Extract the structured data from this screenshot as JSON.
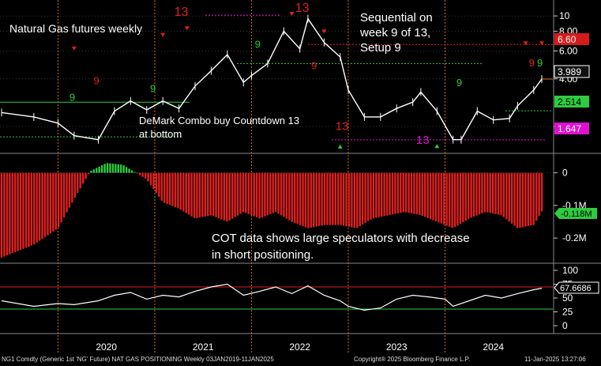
{
  "chart_data": [
    {
      "type": "line",
      "panel": "price",
      "title": "Natural Gas futures weekly",
      "ylabel": "",
      "y_scale": "log",
      "ylim": [
        1.5,
        11.5
      ],
      "yticks": [
        2,
        4,
        6,
        8,
        10
      ],
      "y_tick_labels": [
        "2.00",
        "4.00",
        "6.00",
        "8.00",
        "10"
      ],
      "grid": true,
      "x_domain": [
        "2019-06",
        "2025-01"
      ],
      "series": [
        {
          "color": "#ffffff",
          "x": [
            "2019-06",
            "2019-10",
            "2020-01",
            "2020-03",
            "2020-06",
            "2020-08",
            "2020-10",
            "2020-12",
            "2021-02",
            "2021-04",
            "2021-06",
            "2021-08",
            "2021-10",
            "2021-12",
            "2022-01",
            "2022-03",
            "2022-05",
            "2022-07",
            "2022-08",
            "2022-10",
            "2022-12",
            "2023-01",
            "2023-03",
            "2023-05",
            "2023-07",
            "2023-09",
            "2023-10",
            "2023-12",
            "2024-02",
            "2024-03",
            "2024-05",
            "2024-07",
            "2024-09",
            "2024-10",
            "2024-12",
            "2025-01"
          ],
          "values": [
            2.45,
            2.3,
            2.1,
            1.75,
            1.65,
            2.5,
            2.9,
            2.55,
            2.9,
            2.6,
            3.6,
            4.5,
            5.7,
            3.8,
            4.2,
            5.0,
            8.0,
            6.2,
            9.6,
            6.8,
            5.5,
            3.4,
            2.3,
            2.3,
            2.6,
            2.85,
            3.3,
            2.5,
            1.65,
            1.65,
            2.5,
            2.2,
            2.25,
            2.7,
            3.4,
            3.989
          ]
        }
      ],
      "value_labels": [
        {
          "text": "6.60",
          "color": "#d61b1b"
        },
        {
          "text": "3.989",
          "color": "#ffffff"
        },
        {
          "text": "2.514",
          "color": "#2ecc40"
        },
        {
          "text": "1.647",
          "color": "#e010d0"
        }
      ],
      "annotations": [
        {
          "text": "Sequential on",
          "line": 1
        },
        {
          "text": "week 9 of 13,",
          "line": 2
        },
        {
          "text": "Setup 9",
          "line": 3
        },
        {
          "text": "DeMark Combo buy Countdown 13",
          "line": 1
        },
        {
          "text": "at bottom",
          "line": 2
        }
      ],
      "demark_labels": [
        {
          "text": "13",
          "color": "#e02020"
        },
        {
          "text": "13",
          "color": "#e02020"
        },
        {
          "text": "13",
          "color": "#e02020"
        },
        {
          "text": "13",
          "color": "#e010d0"
        },
        {
          "text": "9",
          "color": "#2ecc40"
        },
        {
          "text": "9",
          "color": "#2ecc40"
        },
        {
          "text": "9",
          "color": "#e02020"
        },
        {
          "text": "9",
          "color": "#2ecc40"
        },
        {
          "text": "9",
          "color": "#e02020"
        },
        {
          "text": "9",
          "color": "#2ecc40"
        },
        {
          "text": "9",
          "color": "#e02020"
        },
        {
          "text": "9",
          "color": "#2ecc40"
        }
      ]
    },
    {
      "type": "bar",
      "panel": "cot",
      "annotation_lines": [
        "COT data shows large speculators with decrease",
        "in short positioning."
      ],
      "yticks": [
        0,
        -0.1,
        -0.2
      ],
      "y_tick_labels": [
        "0",
        "-0.1M",
        "-0.2M"
      ],
      "ylim": [
        -0.27,
        0.05
      ],
      "last_value_label": "-0.118M",
      "positive_color": "#2ecc40",
      "negative_color": "#e02020",
      "series": [
        {
          "x": [
            "2019-06",
            "2019-10",
            "2020-01",
            "2020-03",
            "2020-05",
            "2020-07",
            "2020-09",
            "2020-10",
            "2020-12",
            "2021-02",
            "2021-04",
            "2021-06",
            "2021-08",
            "2021-10",
            "2021-12",
            "2022-02",
            "2022-04",
            "2022-06",
            "2022-08",
            "2022-10",
            "2022-12",
            "2023-02",
            "2023-04",
            "2023-06",
            "2023-08",
            "2023-10",
            "2023-12",
            "2024-02",
            "2024-04",
            "2024-06",
            "2024-08",
            "2024-10",
            "2024-12",
            "2025-01"
          ],
          "values": [
            -0.26,
            -0.22,
            -0.17,
            -0.08,
            0.005,
            0.03,
            0.025,
            0.01,
            -0.02,
            -0.09,
            -0.11,
            -0.14,
            -0.13,
            -0.15,
            -0.12,
            -0.14,
            -0.12,
            -0.15,
            -0.17,
            -0.16,
            -0.16,
            -0.17,
            -0.14,
            -0.13,
            -0.12,
            -0.13,
            -0.15,
            -0.17,
            -0.14,
            -0.12,
            -0.13,
            -0.17,
            -0.16,
            -0.118
          ]
        }
      ]
    },
    {
      "type": "line",
      "panel": "rsi",
      "yticks": [
        0,
        25,
        50,
        75,
        100
      ],
      "y_tick_labels": [
        "0",
        "25",
        "50",
        "75",
        "100"
      ],
      "ylim": [
        0,
        100
      ],
      "overbought": 70,
      "oversold": 30,
      "last_value_label": "67.6686",
      "series": [
        {
          "color": "#ffffff",
          "x": [
            "2019-06",
            "2019-10",
            "2020-01",
            "2020-03",
            "2020-06",
            "2020-08",
            "2020-10",
            "2020-12",
            "2021-02",
            "2021-04",
            "2021-06",
            "2021-08",
            "2021-10",
            "2021-12",
            "2022-02",
            "2022-04",
            "2022-06",
            "2022-08",
            "2022-10",
            "2022-12",
            "2023-01",
            "2023-03",
            "2023-05",
            "2023-07",
            "2023-09",
            "2023-11",
            "2024-01",
            "2024-02",
            "2024-04",
            "2024-06",
            "2024-08",
            "2024-10",
            "2024-12",
            "2025-01"
          ],
          "values": [
            45,
            35,
            40,
            38,
            45,
            55,
            60,
            48,
            55,
            52,
            62,
            70,
            75,
            55,
            62,
            70,
            58,
            72,
            55,
            45,
            35,
            28,
            32,
            48,
            55,
            52,
            48,
            35,
            45,
            55,
            50,
            58,
            65,
            67.6686
          ]
        }
      ]
    }
  ],
  "x_axis": {
    "tick_labels": [
      "2020",
      "2021",
      "2022",
      "2023",
      "2024"
    ],
    "tick_dates": [
      "2020-01",
      "2021-01",
      "2022-01",
      "2023-01",
      "2024-01"
    ]
  },
  "footer": {
    "left": "NG1 Comdty (Generic 1st 'NG' Future) NAT GAS POSITIONING  Weekly 03JAN2019-11JAN2025",
    "center": "Copyright® 2025 Bloomberg Finance L.P.",
    "right": "11-Jan-2025 13:27:06"
  },
  "colors": {
    "background": "#000000",
    "price_line": "#ffffff",
    "bullish": "#2ecc40",
    "bearish": "#e02020",
    "magenta": "#e010d0",
    "orange_grid": "#e07a10",
    "overbought_line": "#d61b1b",
    "oversold_line": "#2ecc40"
  }
}
